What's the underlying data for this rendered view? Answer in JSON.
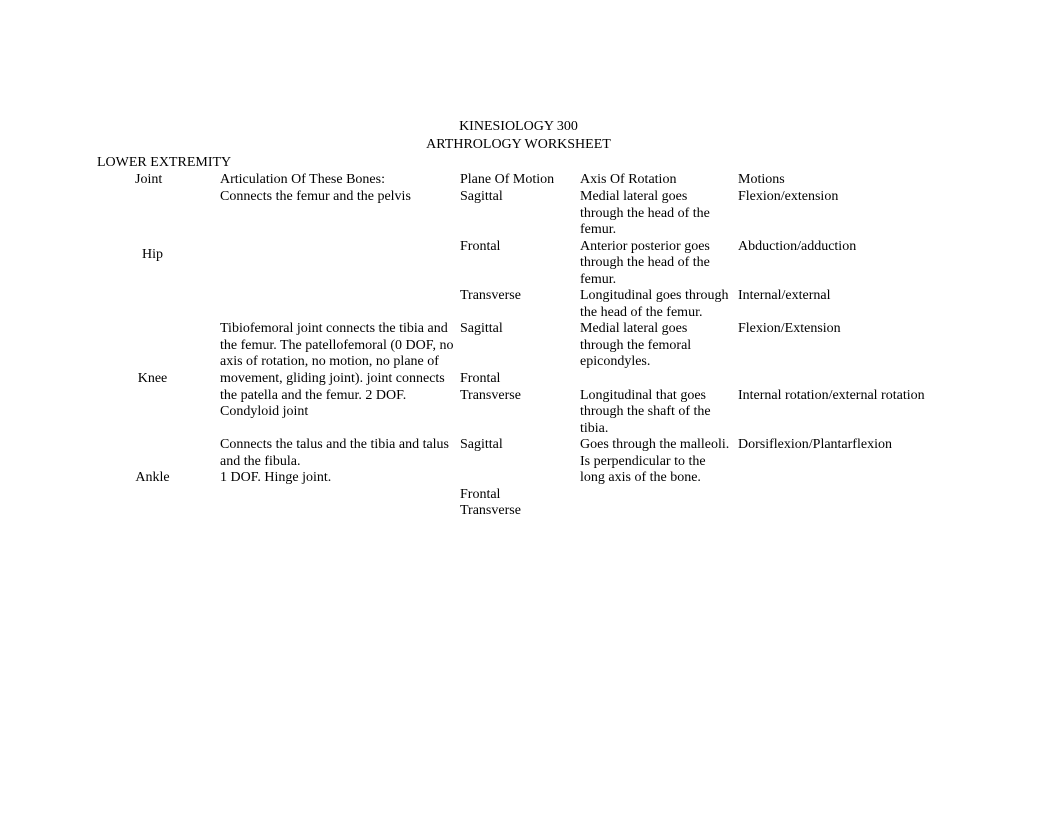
{
  "title": "KINESIOLOGY 300",
  "subtitle": "ARTHROLOGY WORKSHEET",
  "section_heading": "LOWER EXTREMITY",
  "headers": {
    "joint": "Joint",
    "articulation": "Articulation Of These Bones:",
    "plane": "Plane Of Motion",
    "axis": "Axis Of Rotation",
    "motions": "Motions"
  },
  "joints": [
    {
      "name": "Hip",
      "articulation": "Connects the femur and the pelvis",
      "rows": [
        {
          "plane": "Sagittal",
          "axis": "Medial lateral goes through the head of the femur.",
          "motion": "Flexion/extension"
        },
        {
          "plane": "Frontal",
          "axis": "Anterior posterior goes through the head of the femur.",
          "motion": "Abduction/adduction"
        },
        {
          "plane": "Transverse",
          "axis": "Longitudinal goes through the head of the femur.",
          "motion": "Internal/external"
        }
      ]
    },
    {
      "name": "Knee",
      "articulation": "Tibiofemoral joint connects the tibia and the femur. The patellofemoral (0 DOF, no axis of rotation, no motion, no plane of movement, gliding joint). joint connects the patella and the femur. 2 DOF. Condyloid joint",
      "rows": [
        {
          "plane": "Sagittal",
          "axis": "Medial lateral goes through the femoral epicondyles.",
          "motion": "Flexion/Extension"
        },
        {
          "plane": "Frontal",
          "axis": "",
          "motion": ""
        },
        {
          "plane": "Transverse",
          "axis": "Longitudinal that goes through the shaft of the tibia.",
          "motion": "Internal rotation/external rotation"
        }
      ]
    },
    {
      "name": "Ankle",
      "articulation_line1": "Connects the talus and the tibia and talus and the fibula.",
      "articulation_line2": "1 DOF. Hinge joint.",
      "rows": [
        {
          "plane": "Sagittal",
          "axis": "Goes through the malleoli. Is perpendicular to the long axis of the bone.",
          "motion": "Dorsiflexion/Plantarflexion"
        },
        {
          "plane": "Frontal",
          "axis": "",
          "motion": ""
        },
        {
          "plane": "Transverse",
          "axis": "",
          "motion": ""
        }
      ]
    }
  ]
}
